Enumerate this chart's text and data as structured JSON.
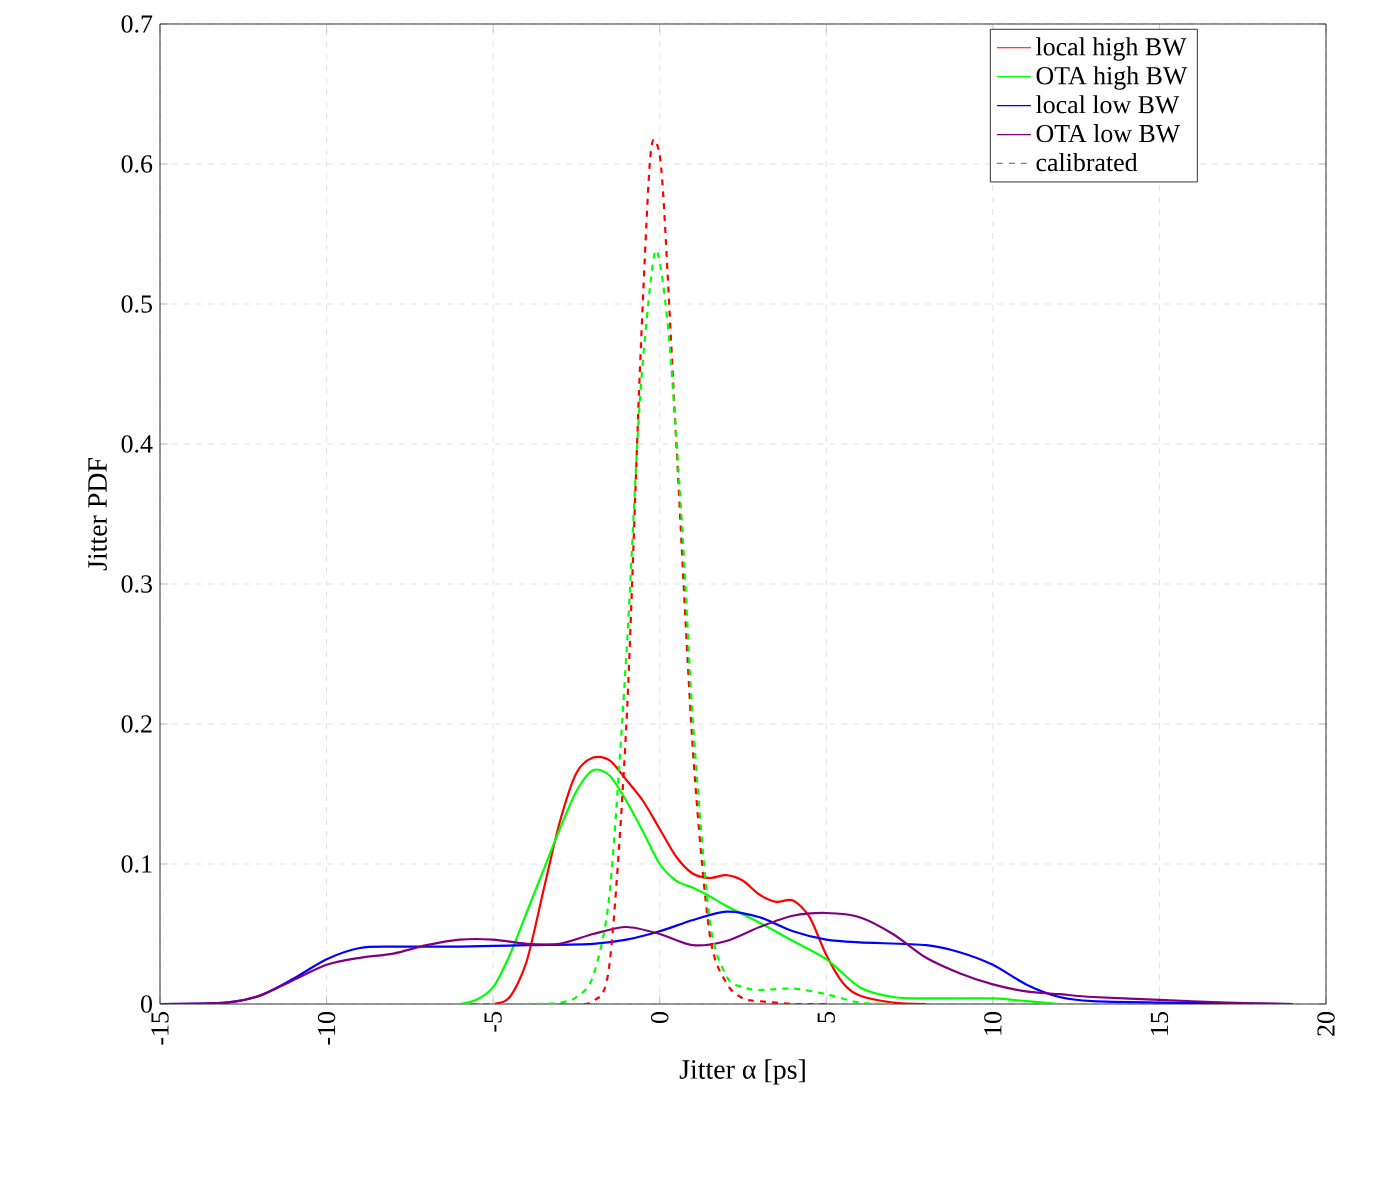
{
  "chart_data": {
    "type": "line",
    "xlabel": "Jitter α [ps]",
    "ylabel": "Jitter PDF",
    "xlim": [
      -15,
      20
    ],
    "ylim": [
      0,
      0.7
    ],
    "xticks": [
      -15,
      -10,
      -5,
      0,
      5,
      10,
      15,
      20
    ],
    "yticks": [
      0,
      0.1,
      0.2,
      0.3,
      0.4,
      0.5,
      0.6,
      0.7
    ],
    "grid": true,
    "legend": "top right",
    "marker": "none",
    "line_style": "solid",
    "series": [
      {
        "name": "local high BW",
        "color": "#ff0000",
        "x": [
          -6,
          -5,
          -4.5,
          -4,
          -3.5,
          -3,
          -2.5,
          -2,
          -1.5,
          -1,
          -0.5,
          0,
          0.5,
          1,
          1.5,
          2,
          2.5,
          3,
          3.5,
          4,
          4.5,
          5,
          5.5,
          6,
          7,
          8
        ],
        "values": [
          0,
          0,
          0.005,
          0.03,
          0.08,
          0.13,
          0.165,
          0.176,
          0.174,
          0.16,
          0.145,
          0.125,
          0.105,
          0.093,
          0.09,
          0.092,
          0.088,
          0.078,
          0.073,
          0.074,
          0.062,
          0.035,
          0.015,
          0.006,
          0.001,
          0
        ]
      },
      {
        "name": "OTA high BW",
        "color": "#00ff00",
        "x": [
          -6,
          -5.5,
          -5,
          -4.5,
          -4,
          -3.5,
          -3,
          -2.5,
          -2,
          -1.5,
          -1,
          -0.5,
          0,
          0.5,
          1,
          1.5,
          2,
          3,
          4,
          5,
          6,
          7,
          8,
          10,
          11,
          12
        ],
        "values": [
          0,
          0.003,
          0.012,
          0.035,
          0.065,
          0.095,
          0.125,
          0.152,
          0.167,
          0.163,
          0.145,
          0.123,
          0.1,
          0.088,
          0.083,
          0.077,
          0.07,
          0.058,
          0.045,
          0.032,
          0.012,
          0.005,
          0.004,
          0.004,
          0.002,
          0
        ]
      },
      {
        "name": "local low BW",
        "color": "#0000ff",
        "x": [
          -15,
          -13,
          -12,
          -11,
          -10,
          -9,
          -8,
          -6,
          -4,
          -2,
          -1,
          0,
          1,
          2,
          3,
          4,
          5,
          6,
          8,
          9,
          10,
          11,
          12,
          13,
          15,
          19
        ],
        "values": [
          0,
          0.001,
          0.006,
          0.018,
          0.032,
          0.04,
          0.041,
          0.041,
          0.042,
          0.043,
          0.046,
          0.052,
          0.06,
          0.066,
          0.062,
          0.052,
          0.046,
          0.044,
          0.042,
          0.037,
          0.028,
          0.014,
          0.005,
          0.002,
          0.001,
          0
        ]
      },
      {
        "name": "OTA low BW",
        "color": "#800080",
        "x": [
          -15,
          -13,
          -12,
          -11,
          -10,
          -9,
          -8,
          -7,
          -6,
          -5,
          -4,
          -3,
          -2,
          -1,
          0,
          1,
          2,
          3,
          4,
          5,
          6,
          7,
          8,
          9,
          10,
          11,
          12,
          13,
          15,
          17,
          19
        ],
        "values": [
          0,
          0.001,
          0.006,
          0.017,
          0.028,
          0.033,
          0.036,
          0.042,
          0.046,
          0.046,
          0.043,
          0.043,
          0.05,
          0.055,
          0.05,
          0.042,
          0.045,
          0.055,
          0.063,
          0.065,
          0.062,
          0.05,
          0.033,
          0.022,
          0.014,
          0.009,
          0.007,
          0.005,
          0.003,
          0.001,
          0
        ]
      },
      {
        "name": "calibrated",
        "color": "#808080",
        "line_style": "dashed"
      },
      {
        "color": "#ff0000",
        "line_style": "dashed",
        "x": [
          -3,
          -2,
          -1.5,
          -1,
          -0.6,
          -0.3,
          -0.1,
          0.1,
          0.5,
          1,
          1.5,
          2,
          2.5,
          3,
          4,
          5
        ],
        "values": [
          0,
          0.002,
          0.03,
          0.2,
          0.45,
          0.6,
          0.615,
          0.58,
          0.4,
          0.18,
          0.05,
          0.015,
          0.004,
          0.002,
          0,
          0
        ]
      },
      {
        "color": "#00ff00",
        "line_style": "dashed",
        "x": [
          -8,
          -4,
          -3,
          -2.5,
          -2,
          -1.5,
          -1,
          -0.6,
          -0.2,
          0,
          0.3,
          0.7,
          1,
          1.5,
          2,
          2.5,
          3,
          4,
          5,
          6,
          7
        ],
        "values": [
          0,
          0,
          0.001,
          0.005,
          0.02,
          0.08,
          0.25,
          0.43,
          0.53,
          0.53,
          0.47,
          0.33,
          0.2,
          0.06,
          0.02,
          0.012,
          0.01,
          0.011,
          0.007,
          0.001,
          0
        ]
      }
    ]
  }
}
